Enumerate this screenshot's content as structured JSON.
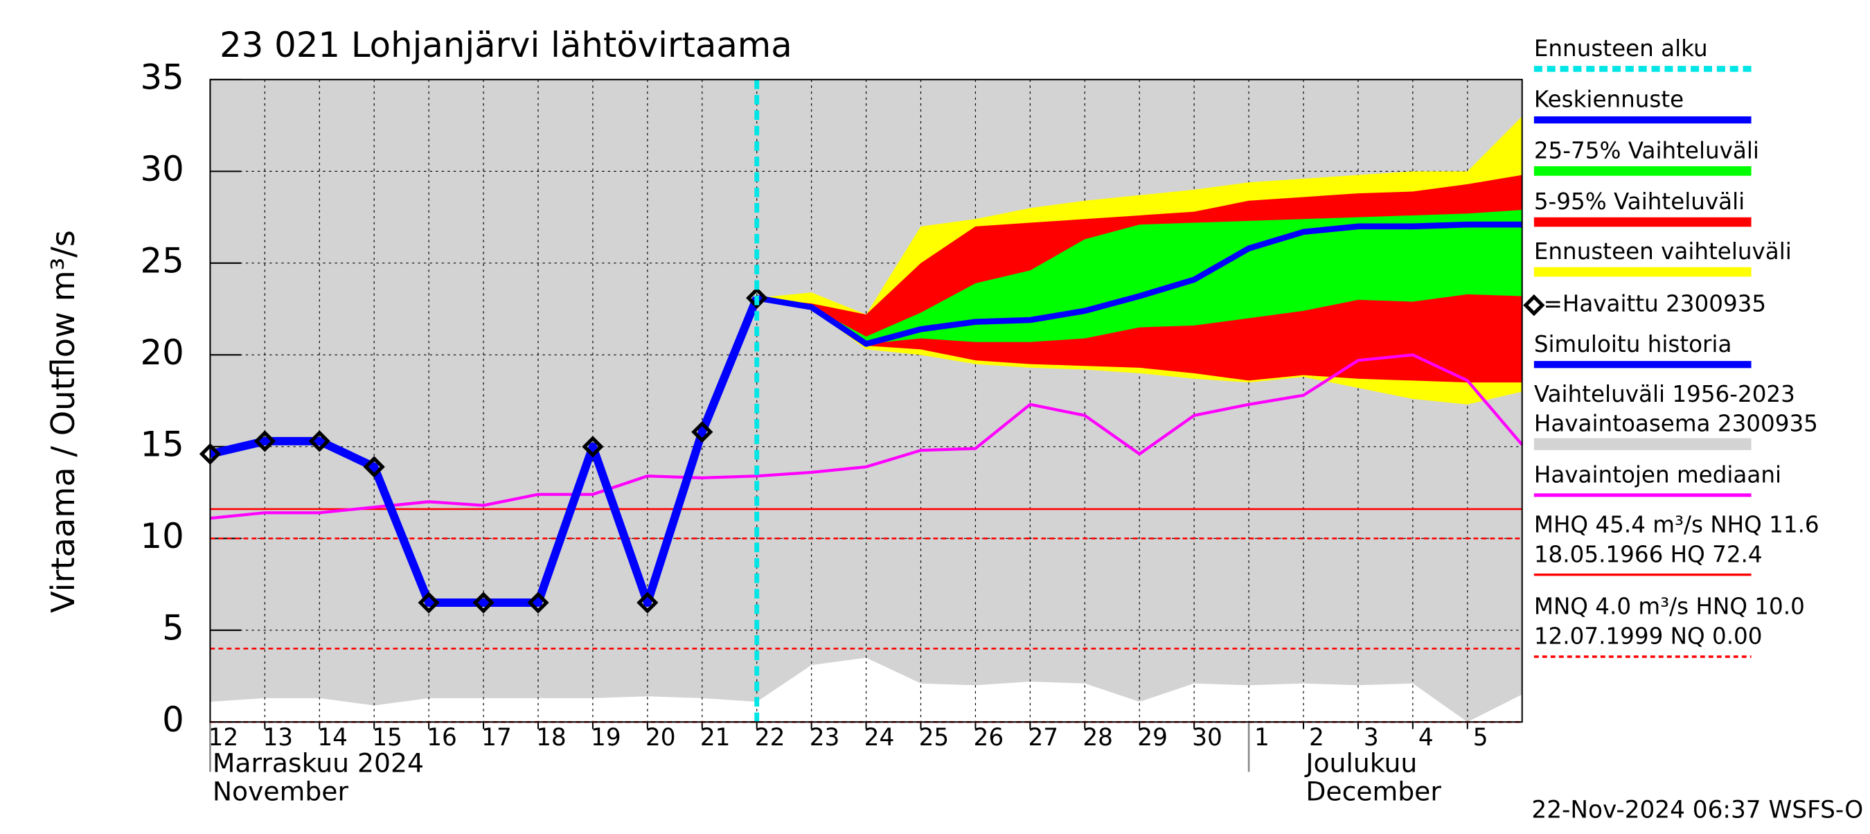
{
  "chart_data": {
    "type": "hydrograph",
    "title": "23 021 Lohjanjärvi lähtövirtaama",
    "y_label": "Virtaama / Outflow    m³/s",
    "xlim": [
      0,
      24
    ],
    "ylim": [
      0,
      35
    ],
    "yticks": [
      0,
      5,
      10,
      15,
      20,
      25,
      30,
      35
    ],
    "xticks": [
      {
        "value": 0,
        "label": "12"
      },
      {
        "value": 1,
        "label": "13"
      },
      {
        "value": 2,
        "label": "14"
      },
      {
        "value": 3,
        "label": "15"
      },
      {
        "value": 4,
        "label": "16"
      },
      {
        "value": 5,
        "label": "17"
      },
      {
        "value": 6,
        "label": "18"
      },
      {
        "value": 7,
        "label": "19"
      },
      {
        "value": 8,
        "label": "20"
      },
      {
        "value": 9,
        "label": "21"
      },
      {
        "value": 10,
        "label": "22"
      },
      {
        "value": 11,
        "label": "23"
      },
      {
        "value": 12,
        "label": "24"
      },
      {
        "value": 13,
        "label": "25"
      },
      {
        "value": 14,
        "label": "26"
      },
      {
        "value": 15,
        "label": "27"
      },
      {
        "value": 16,
        "label": "28"
      },
      {
        "value": 17,
        "label": "29"
      },
      {
        "value": 18,
        "label": "30"
      },
      {
        "value": 19,
        "label": "1"
      },
      {
        "value": 20,
        "label": "2"
      },
      {
        "value": 21,
        "label": "3"
      },
      {
        "value": 22,
        "label": "4"
      },
      {
        "value": 23,
        "label": "5"
      }
    ],
    "months": [
      {
        "value": 0,
        "lines": [
          "Marraskuu 2024",
          "November"
        ]
      },
      {
        "value": 19,
        "lines": [
          "Joulukuu",
          "December"
        ]
      }
    ],
    "grid": true,
    "forecast_start": {
      "name": "Ennusteen alku",
      "color": "#00e5e5",
      "x": 10
    },
    "history_band": {
      "name_lines": [
        "Vaihteluväli 1956-2023",
        " Havaintoasema 2300935"
      ],
      "color": "#d3d3d3",
      "x": [
        0,
        1,
        2,
        3,
        4,
        5,
        6,
        7,
        8,
        9,
        10,
        11,
        12,
        13,
        14,
        15,
        16,
        17,
        18,
        19,
        20,
        21,
        22,
        23,
        24
      ],
      "lower": [
        1.1,
        1.3,
        1.3,
        0.9,
        1.3,
        1.3,
        1.3,
        1.3,
        1.4,
        1.3,
        1.1,
        3.1,
        3.5,
        2.1,
        2.0,
        2.2,
        2.1,
        1.1,
        2.1,
        2.0,
        2.1,
        2.0,
        2.1,
        0.0,
        1.5
      ]
    },
    "bands": [
      {
        "name": "Ennusteen vaihteluväli",
        "color": "#ffff00",
        "x": [
          10,
          11,
          12,
          13,
          14,
          15,
          16,
          17,
          18,
          19,
          20,
          21,
          22,
          23,
          24
        ],
        "upper": [
          23.1,
          23.4,
          22.2,
          27.0,
          27.4,
          28.0,
          28.4,
          28.7,
          29.0,
          29.4,
          29.6,
          29.8,
          30.0,
          30.0,
          33.0
        ],
        "lower": [
          23.1,
          22.5,
          20.3,
          20.0,
          19.5,
          19.3,
          19.2,
          19.0,
          18.7,
          18.5,
          18.8,
          18.2,
          17.6,
          17.3,
          18.0
        ]
      },
      {
        "name": "5-95% Vaihteluväli",
        "color": "#ff0000",
        "x": [
          10,
          11,
          12,
          13,
          14,
          15,
          16,
          17,
          18,
          19,
          20,
          21,
          22,
          23,
          24
        ],
        "upper": [
          23.1,
          22.8,
          22.2,
          25.0,
          27.0,
          27.2,
          27.4,
          27.6,
          27.8,
          28.4,
          28.6,
          28.8,
          28.9,
          29.3,
          29.8
        ],
        "lower": [
          23.1,
          22.5,
          20.5,
          20.3,
          19.7,
          19.5,
          19.4,
          19.3,
          19.0,
          18.6,
          18.9,
          18.7,
          18.6,
          18.5,
          18.5
        ]
      },
      {
        "name": "25-75% Vaihteluväli",
        "color": "#00ff00",
        "x": [
          10,
          11,
          12,
          13,
          14,
          15,
          16,
          17,
          18,
          19,
          20,
          21,
          22,
          23,
          24
        ],
        "upper": [
          23.1,
          22.6,
          21.0,
          22.3,
          23.9,
          24.6,
          26.3,
          27.1,
          27.2,
          27.3,
          27.4,
          27.5,
          27.6,
          27.7,
          27.9
        ],
        "lower": [
          23.1,
          22.6,
          20.6,
          20.9,
          20.7,
          20.7,
          20.9,
          21.5,
          21.6,
          22.0,
          22.4,
          23.0,
          22.9,
          23.3,
          23.2
        ]
      }
    ],
    "median": {
      "name": "Havaintojen mediaani",
      "color": "#ff00ff",
      "x": [
        0,
        1,
        2,
        3,
        4,
        5,
        6,
        7,
        8,
        9,
        10,
        11,
        12,
        13,
        14,
        15,
        16,
        17,
        18,
        19,
        20,
        21,
        22,
        23,
        24
      ],
      "values": [
        11.1,
        11.4,
        11.4,
        11.7,
        12.0,
        11.8,
        12.4,
        12.4,
        13.4,
        13.3,
        13.4,
        13.6,
        13.9,
        14.8,
        14.9,
        17.3,
        16.7,
        14.6,
        16.7,
        17.3,
        17.8,
        19.7,
        20.0,
        18.6,
        15.1
      ]
    },
    "forecast": {
      "name": "Keskiennuste",
      "color": "#0000ff",
      "x": [
        10,
        11,
        12,
        13,
        14,
        15,
        16,
        17,
        18,
        19,
        20,
        21,
        22,
        23,
        24
      ],
      "values": [
        23.1,
        22.6,
        20.6,
        21.4,
        21.8,
        21.9,
        22.4,
        23.2,
        24.1,
        25.8,
        26.7,
        27.0,
        27.0,
        27.1,
        27.1
      ]
    },
    "simulated": {
      "name": "Simuloitu historia",
      "color": "#0000ff",
      "x": [
        0,
        1,
        2,
        3,
        4,
        5,
        6,
        7,
        8,
        9,
        10
      ],
      "values": [
        14.6,
        15.3,
        15.3,
        13.9,
        6.5,
        6.5,
        6.5,
        15.0,
        6.5,
        15.8,
        23.1
      ]
    },
    "observed": {
      "name": "=Havaittu 2300935",
      "color": "#000000",
      "x": [
        0,
        1,
        2,
        3,
        4,
        5,
        6,
        7,
        8,
        9,
        10
      ],
      "values": [
        14.6,
        15.3,
        15.3,
        13.9,
        6.5,
        6.5,
        6.5,
        15.0,
        6.5,
        15.8,
        23.1
      ]
    },
    "reference_lines": [
      {
        "value": 11.6,
        "color": "#ff0000",
        "dashed": false
      },
      {
        "value": 10.0,
        "color": "#ff0000",
        "dashed": true
      },
      {
        "value": 4.0,
        "color": "#ff0000",
        "dashed": true
      },
      {
        "value": 0.0,
        "color": "#ff0000",
        "dashed": true
      }
    ],
    "reference_legend": [
      {
        "lines": [
          "MHQ 45.4 m³/s NHQ 11.6",
          "18.05.1966 HQ 72.4"
        ],
        "color": "#ff0000",
        "dashed": false
      },
      {
        "lines": [
          "MNQ  4.0 m³/s HNQ 10.0",
          "12.07.1999 NQ 0.00"
        ],
        "color": "#ff0000",
        "dashed": true
      }
    ],
    "footer": "22-Nov-2024 06:37 WSFS-O"
  }
}
